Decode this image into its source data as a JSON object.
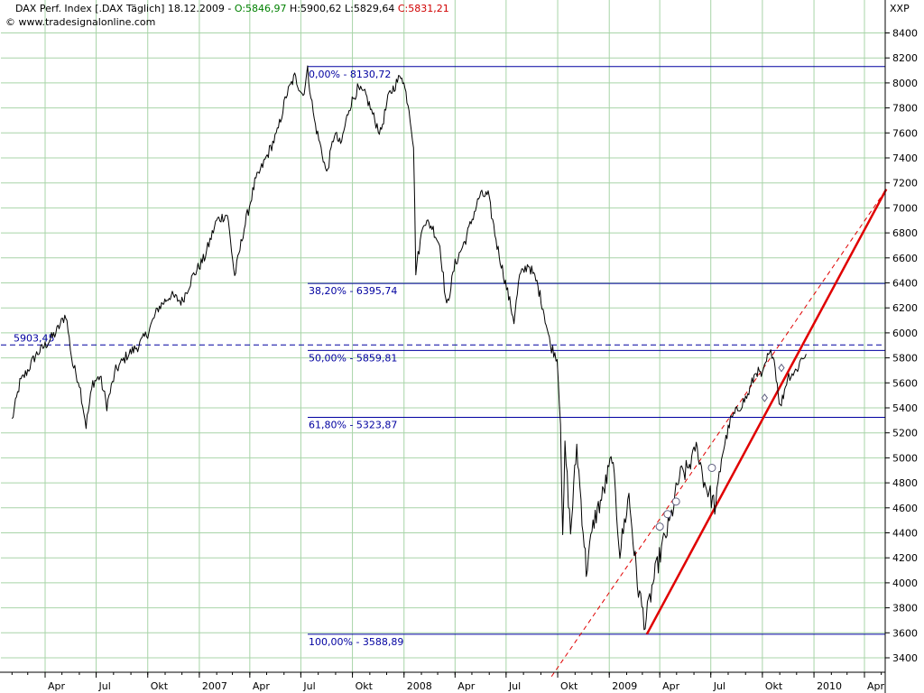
{
  "header": {
    "instrument": "DAX Perf. Index [.DAX  Täglich] 18.12.2009 - ",
    "open": "O:5846,97",
    "high": "H:5900,62",
    "low": "L:5829,64",
    "close": "C:5831,21",
    "source": "© www.tradesignalonline.com",
    "exchange": "XXP"
  },
  "colors": {
    "open": "#008000",
    "close": "#d00000",
    "fib": "#0000a0",
    "trend": "#e00000",
    "grid": "#a8d4a8",
    "price": "#000000"
  },
  "chart_data": {
    "type": "line",
    "title": "DAX Perf. Index [.DAX  Täglich] 18.12.2009",
    "ylim": [
      3300,
      8600
    ],
    "y_ticks": [
      3400,
      3600,
      3800,
      4000,
      4200,
      4400,
      4600,
      4800,
      5000,
      5200,
      5400,
      5600,
      5800,
      6000,
      6200,
      6400,
      6600,
      6800,
      7000,
      7200,
      7400,
      7600,
      7800,
      8000,
      8200,
      8400
    ],
    "y_tick_labels": [
      "3400",
      "3600",
      "3800",
      "4000",
      "4200",
      "4400",
      "4600",
      "4800",
      "5000",
      "5200",
      "5400",
      "5600",
      "5800",
      "6000",
      "6200",
      "6400",
      "6600",
      "6800",
      "7000",
      "7200",
      "7400",
      "7600",
      "7800",
      "8000",
      "8200",
      "8400"
    ],
    "x_range": [
      "2006-02-01",
      "2010-05-01"
    ],
    "x_ticks": [
      {
        "date": "2006-04-01",
        "label": "Apr"
      },
      {
        "date": "2006-07-01",
        "label": "Jul"
      },
      {
        "date": "2006-10-01",
        "label": "Okt"
      },
      {
        "date": "2007-01-01",
        "label": "2007"
      },
      {
        "date": "2007-04-01",
        "label": "Apr"
      },
      {
        "date": "2007-07-01",
        "label": "Jul"
      },
      {
        "date": "2007-10-01",
        "label": "Okt"
      },
      {
        "date": "2008-01-01",
        "label": "2008"
      },
      {
        "date": "2008-04-01",
        "label": "Apr"
      },
      {
        "date": "2008-07-01",
        "label": "Jul"
      },
      {
        "date": "2008-10-01",
        "label": "Okt"
      },
      {
        "date": "2009-01-01",
        "label": "2009"
      },
      {
        "date": "2009-04-01",
        "label": "Apr"
      },
      {
        "date": "2009-07-01",
        "label": "Jul"
      },
      {
        "date": "2009-10-01",
        "label": "Okt"
      },
      {
        "date": "2010-01-01",
        "label": "2010"
      },
      {
        "date": "2010-04-01",
        "label": "Apr"
      }
    ],
    "series": [
      {
        "values": [
          [
            "2006-02-01",
            5300
          ],
          [
            "2006-02-15",
            5600
          ],
          [
            "2006-03-01",
            5700
          ],
          [
            "2006-03-15",
            5820
          ],
          [
            "2006-04-01",
            5900
          ],
          [
            "2006-04-20",
            6000
          ],
          [
            "2006-05-08",
            6150
          ],
          [
            "2006-05-20",
            5750
          ],
          [
            "2006-06-01",
            5600
          ],
          [
            "2006-06-13",
            5260
          ],
          [
            "2006-06-25",
            5600
          ],
          [
            "2006-07-08",
            5650
          ],
          [
            "2006-07-20",
            5420
          ],
          [
            "2006-08-05",
            5700
          ],
          [
            "2006-08-25",
            5820
          ],
          [
            "2006-09-15",
            5900
          ],
          [
            "2006-10-01",
            6000
          ],
          [
            "2006-10-20",
            6200
          ],
          [
            "2006-11-10",
            6300
          ],
          [
            "2006-12-01",
            6250
          ],
          [
            "2006-12-20",
            6450
          ],
          [
            "2007-01-10",
            6600
          ],
          [
            "2007-02-01",
            6900
          ],
          [
            "2007-02-20",
            6950
          ],
          [
            "2007-03-05",
            6450
          ],
          [
            "2007-03-20",
            6800
          ],
          [
            "2007-04-10",
            7200
          ],
          [
            "2007-04-30",
            7400
          ],
          [
            "2007-05-20",
            7600
          ],
          [
            "2007-06-05",
            7900
          ],
          [
            "2007-06-20",
            8050
          ],
          [
            "2007-07-05",
            7900
          ],
          [
            "2007-07-13",
            8100
          ],
          [
            "2007-07-25",
            7700
          ],
          [
            "2007-08-10",
            7400
          ],
          [
            "2007-08-16",
            7270
          ],
          [
            "2007-08-30",
            7600
          ],
          [
            "2007-09-10",
            7500
          ],
          [
            "2007-09-25",
            7800
          ],
          [
            "2007-10-10",
            7950
          ],
          [
            "2007-10-25",
            7900
          ],
          [
            "2007-11-10",
            7700
          ],
          [
            "2007-11-20",
            7600
          ],
          [
            "2007-12-05",
            7900
          ],
          [
            "2007-12-28",
            8070
          ],
          [
            "2008-01-10",
            7800
          ],
          [
            "2008-01-18",
            7500
          ],
          [
            "2008-01-22",
            6500
          ],
          [
            "2008-02-05",
            6900
          ],
          [
            "2008-02-20",
            6850
          ],
          [
            "2008-03-05",
            6700
          ],
          [
            "2008-03-17",
            6200
          ],
          [
            "2008-04-01",
            6550
          ],
          [
            "2008-04-20",
            6750
          ],
          [
            "2008-05-15",
            7100
          ],
          [
            "2008-05-30",
            7100
          ],
          [
            "2008-06-15",
            6700
          ],
          [
            "2008-06-30",
            6400
          ],
          [
            "2008-07-15",
            6100
          ],
          [
            "2008-07-25",
            6450
          ],
          [
            "2008-08-10",
            6550
          ],
          [
            "2008-08-25",
            6400
          ],
          [
            "2008-09-05",
            6200
          ],
          [
            "2008-09-18",
            5900
          ],
          [
            "2008-09-30",
            5800
          ],
          [
            "2008-10-06",
            5300
          ],
          [
            "2008-10-10",
            4300
          ],
          [
            "2008-10-14",
            5100
          ],
          [
            "2008-10-24",
            4400
          ],
          [
            "2008-11-04",
            5100
          ],
          [
            "2008-11-21",
            4100
          ],
          [
            "2008-12-05",
            4500
          ],
          [
            "2008-12-20",
            4700
          ],
          [
            "2009-01-06",
            5000
          ],
          [
            "2009-01-20",
            4250
          ],
          [
            "2009-02-05",
            4700
          ],
          [
            "2009-02-20",
            4000
          ],
          [
            "2009-03-06",
            3666
          ],
          [
            "2009-03-20",
            4000
          ],
          [
            "2009-04-06",
            4300
          ],
          [
            "2009-04-20",
            4500
          ],
          [
            "2009-05-06",
            4850
          ],
          [
            "2009-05-20",
            4900
          ],
          [
            "2009-06-05",
            5100
          ],
          [
            "2009-06-20",
            4800
          ],
          [
            "2009-07-10",
            4600
          ],
          [
            "2009-07-20",
            5000
          ],
          [
            "2009-08-05",
            5300
          ],
          [
            "2009-08-20",
            5400
          ],
          [
            "2009-09-05",
            5500
          ],
          [
            "2009-09-20",
            5700
          ],
          [
            "2009-10-01",
            5650
          ],
          [
            "2009-10-10",
            5800
          ],
          [
            "2009-10-20",
            5850
          ],
          [
            "2009-11-02",
            5400
          ],
          [
            "2009-11-15",
            5650
          ],
          [
            "2009-12-01",
            5700
          ],
          [
            "2009-12-10",
            5800
          ],
          [
            "2009-12-18",
            5831
          ]
        ]
      }
    ],
    "fib_levels": [
      {
        "value": 8130.72,
        "label": "0,00% - 8130,72"
      },
      {
        "value": 6395.74,
        "label": "38,20% - 6395,74"
      },
      {
        "value": 5859.81,
        "label": "50,00% - 5859,81"
      },
      {
        "value": 5323.87,
        "label": "61,80% - 5323,87"
      },
      {
        "value": 3588.89,
        "label": "100,00% - 3588,89"
      }
    ],
    "dashed_level": {
      "value": 5903.45,
      "label": "5903,45"
    },
    "trend_solid": [
      [
        "2009-03-09",
        3588.89
      ],
      [
        "2010-05-10",
        7150
      ]
    ],
    "trend_dashed": [
      [
        "2008-09-20",
        3250
      ],
      [
        "2010-05-10",
        7150
      ]
    ],
    "annotation_circles": [
      [
        "2009-04-01",
        4450
      ],
      [
        "2009-04-15",
        4550
      ],
      [
        "2009-04-30",
        4650
      ],
      [
        "2009-07-03",
        4920
      ]
    ],
    "annotation_diamonds": [
      [
        "2009-10-05",
        5480
      ],
      [
        "2009-11-04",
        5720
      ]
    ],
    "grid": true
  }
}
